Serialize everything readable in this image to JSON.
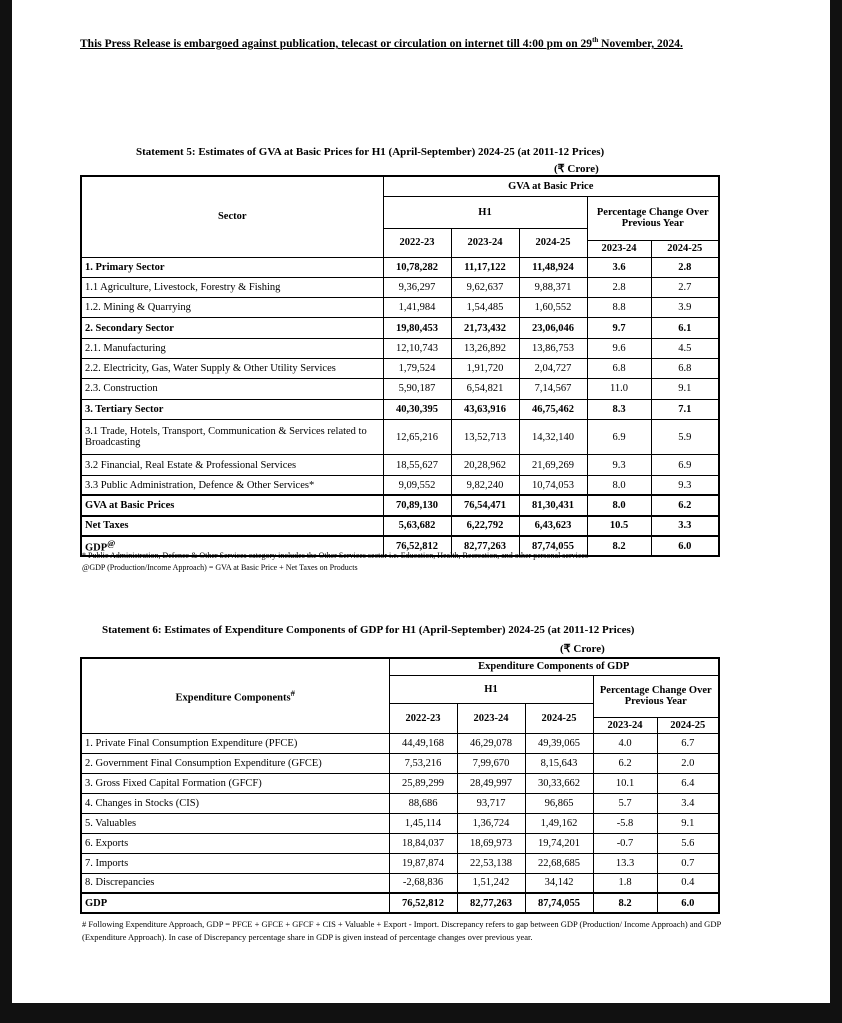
{
  "embargo": {
    "text_before": "This Press Release is embargoed against publication, telecast or circulation on internet till 4:00 pm on 29",
    "sup": "th",
    "text_after": " November, 2024."
  },
  "statement5": {
    "title": "Statement 5: Estimates of GVA at Basic Prices for H1 (April-September) 2024-25 (at 2011-12 Prices)",
    "unit": "(₹ Crore)",
    "header": {
      "sector": "Sector",
      "group": "GVA at Basic Price",
      "h1": "H1",
      "pct": "Percentage Change Over Previous Year",
      "years": [
        "2022-23",
        "2023-24",
        "2024-25"
      ],
      "pct_years": [
        "2023-24",
        "2024-25"
      ]
    },
    "rows": [
      {
        "label": "1. Primary Sector",
        "bold": true,
        "values": [
          "10,78,282",
          "11,17,122",
          "11,48,924",
          "3.6",
          "2.8"
        ]
      },
      {
        "label": "1.1 Agriculture, Livestock, Forestry & Fishing",
        "values": [
          "9,36,297",
          "9,62,637",
          "9,88,371",
          "2.8",
          "2.7"
        ]
      },
      {
        "label": "1.2. Mining & Quarrying",
        "values": [
          "1,41,984",
          "1,54,485",
          "1,60,552",
          "8.8",
          "3.9"
        ]
      },
      {
        "label": "2. Secondary Sector",
        "bold": true,
        "values": [
          "19,80,453",
          "21,73,432",
          "23,06,046",
          "9.7",
          "6.1"
        ]
      },
      {
        "label": "2.1. Manufacturing",
        "values": [
          "12,10,743",
          "13,26,892",
          "13,86,753",
          "9.6",
          "4.5"
        ]
      },
      {
        "label": "2.2. Electricity, Gas, Water Supply & Other Utility Services",
        "values": [
          "1,79,524",
          "1,91,720",
          "2,04,727",
          "6.8",
          "6.8"
        ]
      },
      {
        "label": "2.3. Construction",
        "values": [
          "5,90,187",
          "6,54,821",
          "7,14,567",
          "11.0",
          "9.1"
        ]
      },
      {
        "label": "3. Tertiary Sector",
        "bold": true,
        "values": [
          "40,30,395",
          "43,63,916",
          "46,75,462",
          "8.3",
          "7.1"
        ]
      },
      {
        "label": "3.1 Trade, Hotels, Transport, Communication & Services related to Broadcasting",
        "tall": true,
        "values": [
          "12,65,216",
          "13,52,713",
          "14,32,140",
          "6.9",
          "5.9"
        ]
      },
      {
        "label": "3.2 Financial, Real Estate & Professional Services",
        "values": [
          "18,55,627",
          "20,28,962",
          "21,69,269",
          "9.3",
          "6.9"
        ]
      },
      {
        "label": "3.3 Public Administration, Defence & Other Services*",
        "values": [
          "9,09,552",
          "9,82,240",
          "10,74,053",
          "8.0",
          "9.3"
        ]
      },
      {
        "label": "GVA at Basic Prices",
        "bold": true,
        "thick": true,
        "values": [
          "70,89,130",
          "76,54,471",
          "81,30,431",
          "8.0",
          "6.2"
        ]
      },
      {
        "label": "Net Taxes",
        "bold": true,
        "thick": true,
        "values": [
          "5,63,682",
          "6,22,792",
          "6,43,623",
          "10.5",
          "3.3"
        ]
      },
      {
        "label": "GDP",
        "sup": "@",
        "bold": true,
        "thick": true,
        "values": [
          "76,52,812",
          "82,77,263",
          "87,74,055",
          "8.2",
          "6.0"
        ]
      }
    ],
    "notes": [
      "* Public Administration, Defence & Other Services category includes the Other Services sector i.e. Education, Health, Recreation, and other personal services",
      "@GDP (Production/Income Approach) = GVA at Basic Price + Net Taxes on Products"
    ]
  },
  "statement6": {
    "title": "Statement 6: Estimates of Expenditure Components of GDP for H1 (April-September) 2024-25  (at 2011-12 Prices)",
    "unit": "(₹ Crore)",
    "header": {
      "component": "Expenditure Components",
      "component_sup": "#",
      "group": "Expenditure Components of GDP",
      "h1": "H1",
      "pct": "Percentage Change Over Previous Year",
      "years": [
        "2022-23",
        "2023-24",
        "2024-25"
      ],
      "pct_years": [
        "2023-24",
        "2024-25"
      ]
    },
    "rows": [
      {
        "label": "1. Private Final Consumption Expenditure (PFCE)",
        "values": [
          "44,49,168",
          "46,29,078",
          "49,39,065",
          "4.0",
          "6.7"
        ]
      },
      {
        "label": "2. Government Final Consumption Expenditure (GFCE)",
        "values": [
          "7,53,216",
          "7,99,670",
          "8,15,643",
          "6.2",
          "2.0"
        ]
      },
      {
        "label": "3. Gross Fixed Capital Formation (GFCF)",
        "values": [
          "25,89,299",
          "28,49,997",
          "30,33,662",
          "10.1",
          "6.4"
        ]
      },
      {
        "label": "4. Changes in Stocks (CIS)",
        "values": [
          "88,686",
          "93,717",
          "96,865",
          "5.7",
          "3.4"
        ]
      },
      {
        "label": "5. Valuables",
        "values": [
          "1,45,114",
          "1,36,724",
          "1,49,162",
          "-5.8",
          "9.1"
        ]
      },
      {
        "label": "6. Exports",
        "values": [
          "18,84,037",
          "18,69,973",
          "19,74,201",
          "-0.7",
          "5.6"
        ]
      },
      {
        "label": "7. Imports",
        "values": [
          "19,87,874",
          "22,53,138",
          "22,68,685",
          "13.3",
          "0.7"
        ]
      },
      {
        "label": "8. Discrepancies",
        "values": [
          "-2,68,836",
          "1,51,242",
          "34,142",
          "1.8",
          "0.4"
        ]
      },
      {
        "label": "GDP",
        "bold": true,
        "thick": true,
        "values": [
          "76,52,812",
          "82,77,263",
          "87,74,055",
          "8.2",
          "6.0"
        ]
      }
    ],
    "note": "# Following Expenditure Approach, GDP = PFCE + GFCE + GFCF + CIS + Valuable + Export - Import. Discrepancy refers to gap between GDP (Production/ Income Approach) and GDP (Expenditure Approach). In case of Discrepancy percentage share in GDP is given instead of percentage changes over previous year."
  }
}
